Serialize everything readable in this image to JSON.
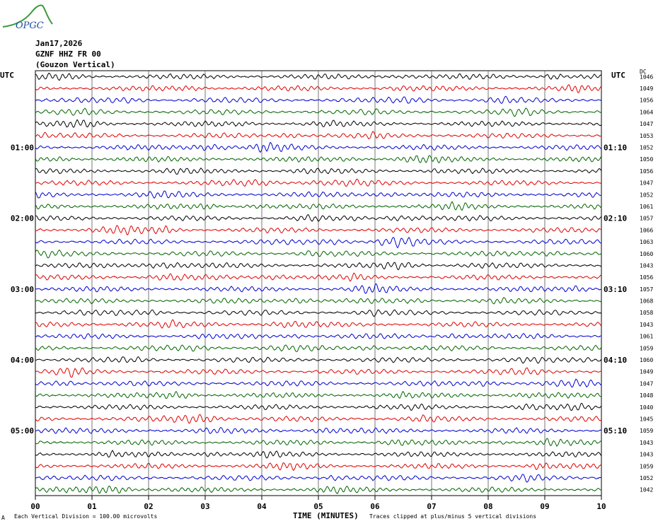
{
  "header": {
    "date": "Jan17,2026",
    "station": "GZNF HHZ FR 00",
    "location": "(Gouzon Vertical)",
    "logo_text": "OPGC",
    "left_axis_label": "UTC",
    "right_axis_label": "UTC",
    "dc_label": "DC"
  },
  "footer": {
    "corner_mark": "A",
    "scale_note": "Each Vertical Division =  100.00 microvolts",
    "clip_note": "Traces clipped at plus/minus 5 vertical divisions"
  },
  "chart_data": {
    "type": "line",
    "title": "",
    "xlabel": "TIME (MINUTES)",
    "ylabel": "UTC",
    "xlim": [
      0,
      10
    ],
    "x_ticks": [
      "00",
      "01",
      "02",
      "03",
      "04",
      "05",
      "06",
      "07",
      "08",
      "09",
      "10"
    ],
    "grid": true,
    "trace_colors": [
      "#000000",
      "#e00000",
      "#0000d0",
      "#006400"
    ],
    "left_hour_labels": [
      {
        "row": 6,
        "label": "01:00"
      },
      {
        "row": 12,
        "label": "02:00"
      },
      {
        "row": 18,
        "label": "03:00"
      },
      {
        "row": 24,
        "label": "04:00"
      },
      {
        "row": 30,
        "label": "05:00"
      }
    ],
    "right_hour_labels": [
      {
        "row": 6,
        "label": "01:10"
      },
      {
        "row": 12,
        "label": "02:10"
      },
      {
        "row": 18,
        "label": "03:10"
      },
      {
        "row": 24,
        "label": "04:10"
      },
      {
        "row": 30,
        "label": "05:10"
      }
    ],
    "dc_offsets": [
      1046,
      1049,
      1056,
      1064,
      1047,
      1053,
      1052,
      1050,
      1056,
      1047,
      1052,
      1061,
      1057,
      1066,
      1063,
      1060,
      1043,
      1056,
      1057,
      1068,
      1058,
      1043,
      1061,
      1059,
      1060,
      1049,
      1047,
      1048,
      1040,
      1045,
      1059,
      1043,
      1043,
      1059,
      1052,
      1042
    ]
  }
}
